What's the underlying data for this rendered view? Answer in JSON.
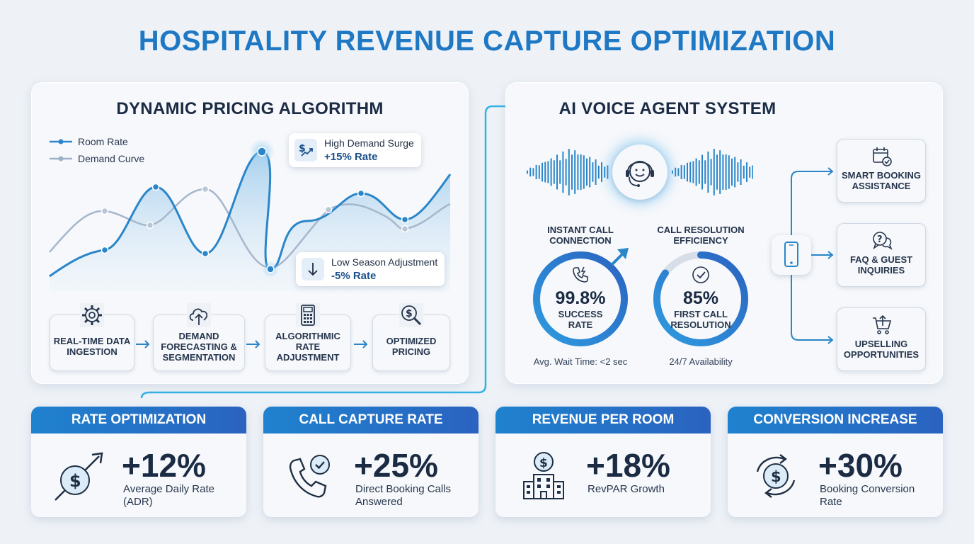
{
  "title": "HOSPITALITY REVENUE CAPTURE OPTIMIZATION",
  "pricing": {
    "title": "DYNAMIC PRICING ALGORITHM",
    "legend": [
      "Room Rate",
      "Demand Curve"
    ],
    "callout_high": {
      "line1": "High Demand Surge",
      "line2": "+15% Rate"
    },
    "callout_low": {
      "line1": "Low Season Adjustment",
      "line2": "-5% Rate"
    },
    "steps": [
      {
        "label": "REAL-TIME DATA INGESTION",
        "icon": "gear-icon"
      },
      {
        "label": "DEMAND FORECASTING & SEGMENTATION",
        "icon": "cloud-upload-icon"
      },
      {
        "label": "ALGORITHMIC RATE ADJUSTMENT",
        "icon": "calculator-icon"
      },
      {
        "label": "OPTIMIZED PRICING",
        "icon": "dollar-search-icon"
      }
    ],
    "colors": {
      "room_rate": "#2a86c8",
      "demand_curve": "#9db0c8"
    }
  },
  "voice": {
    "title": "AI VOICE AGENT SYSTEM",
    "gauges": [
      {
        "label": "INSTANT CALL CONNECTION",
        "value": "99.8%",
        "sub": "SUCCESS RATE",
        "note": "Avg. Wait Time: <2 sec",
        "fill": 0.998,
        "icon": "phone-call-icon"
      },
      {
        "label": "CALL RESOLUTION EFFICIENCY",
        "value": "85%",
        "sub": "FIRST CALL RESOLUTION",
        "note": "24/7 Availability",
        "fill": 0.85,
        "icon": "check-circle-icon"
      }
    ],
    "features": [
      {
        "label": "SMART BOOKING ASSISTANCE",
        "icon": "calendar-check-icon"
      },
      {
        "label": "FAQ & GUEST INQUIRIES",
        "icon": "chat-question-icon"
      },
      {
        "label": "UPSELLING OPPORTUNITIES",
        "icon": "cart-icon"
      }
    ]
  },
  "kpis": [
    {
      "head": "RATE OPTIMIZATION",
      "value": "+12%",
      "label": "Average Daily Rate (ADR)",
      "icon": "dollar-growth-icon"
    },
    {
      "head": "CALL CAPTURE RATE",
      "value": "+25%",
      "label": "Direct Booking Calls Answered",
      "icon": "phone-check-icon"
    },
    {
      "head": "REVENUE PER ROOM",
      "value": "+18%",
      "label": "RevPAR Growth",
      "icon": "hotel-dollar-icon"
    },
    {
      "head": "CONVERSION INCREASE",
      "value": "+30%",
      "label": "Booking Conversion Rate",
      "icon": "cycle-dollar-icon"
    }
  ]
}
